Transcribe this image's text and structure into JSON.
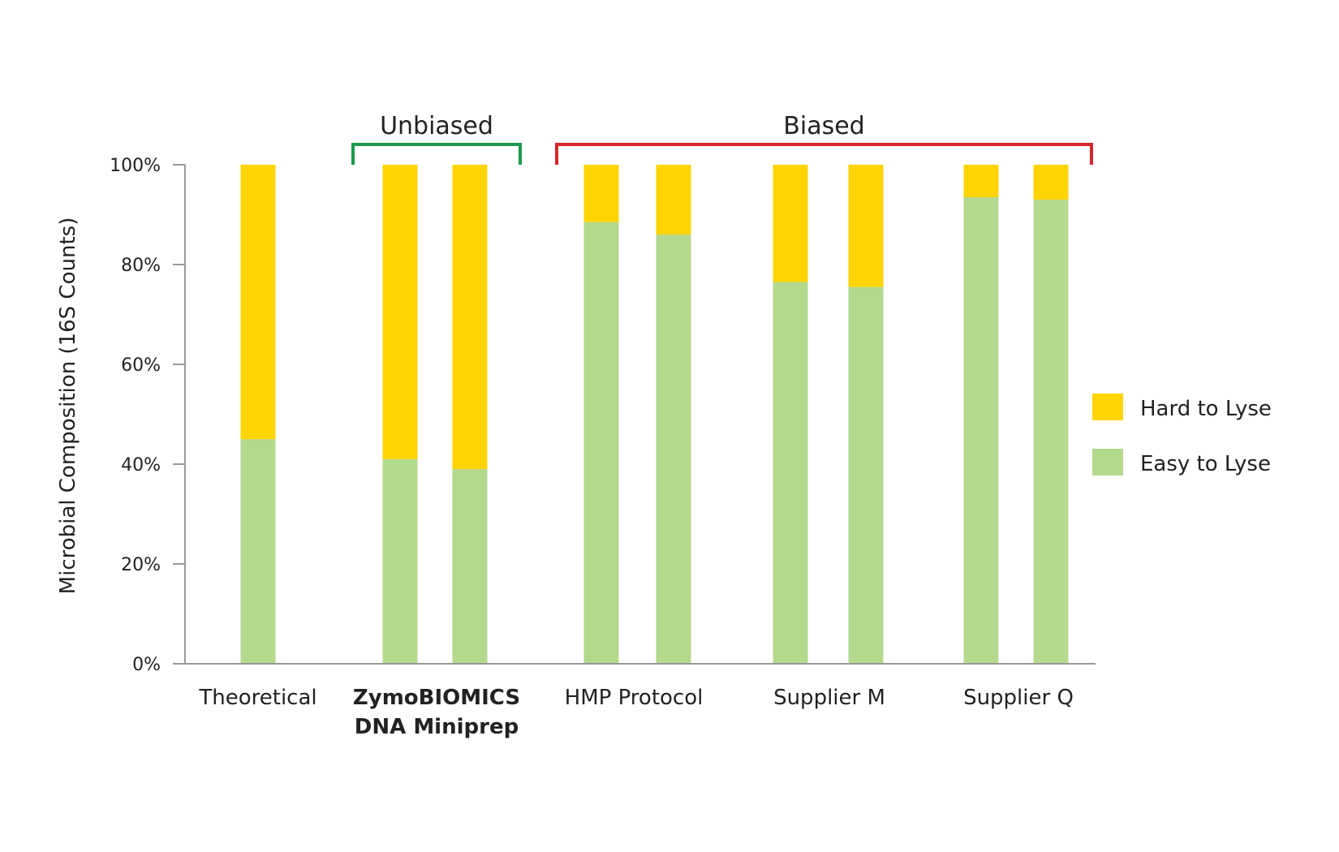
{
  "chart_data": {
    "type": "bar",
    "stacked": true,
    "ylabel": "Microbial Composition (16S Counts)",
    "ylim": [
      0,
      100
    ],
    "yticks": [
      "0%",
      "20%",
      "40%",
      "60%",
      "80%",
      "100%"
    ],
    "categories": [
      {
        "label": [
          "Theoretical"
        ],
        "bold": false
      },
      {
        "label": [
          "ZymoBIOMICS",
          "DNA Miniprep"
        ],
        "bold": true
      },
      {
        "label": [
          "HMP Protocol"
        ],
        "bold": false
      },
      {
        "label": [
          "Supplier M"
        ],
        "bold": false
      },
      {
        "label": [
          "Supplier Q"
        ],
        "bold": false
      }
    ],
    "bars": [
      {
        "category": "Theoretical",
        "easy": 45,
        "hard": 55
      },
      {
        "category": "ZymoBIOMICS DNA Miniprep",
        "easy": 41,
        "hard": 59
      },
      {
        "category": "ZymoBIOMICS DNA Miniprep",
        "easy": 39,
        "hard": 61
      },
      {
        "category": "HMP Protocol",
        "easy": 88.5,
        "hard": 11.5
      },
      {
        "category": "HMP Protocol",
        "easy": 86,
        "hard": 14
      },
      {
        "category": "Supplier M",
        "easy": 76.5,
        "hard": 23.5
      },
      {
        "category": "Supplier M",
        "easy": 75.5,
        "hard": 24.5
      },
      {
        "category": "Supplier Q",
        "easy": 93.5,
        "hard": 6.5
      },
      {
        "category": "Supplier Q",
        "easy": 93,
        "hard": 7
      }
    ],
    "series": [
      {
        "name": "Hard to Lyse",
        "color": "#ffd400"
      },
      {
        "name": "Easy to Lyse",
        "color": "#b2d98c"
      }
    ],
    "groups": [
      {
        "label": "Unbiased",
        "color": "#1a9a4a"
      },
      {
        "label": "Biased",
        "color": "#d6262e"
      }
    ],
    "legend": "right",
    "grid": false
  }
}
